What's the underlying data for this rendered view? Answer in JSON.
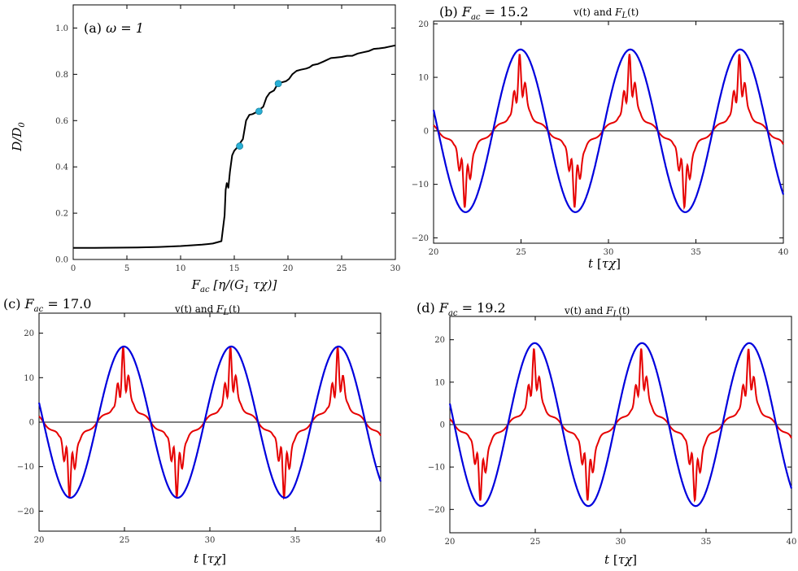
{
  "chart_data": [
    {
      "id": "a",
      "type": "line",
      "title": "(a) ω = 1",
      "panel_label": "(a)",
      "omega_label": "ω = 1",
      "xlabel": "F_ac [η/(G_1 τχ)]",
      "ylabel": "D/D_0",
      "xlim": [
        0,
        30
      ],
      "ylim": [
        0,
        1.1
      ],
      "xticks": [
        0,
        5,
        10,
        15,
        20,
        25,
        30
      ],
      "yticks": [
        0.0,
        0.2,
        0.4,
        0.6,
        0.8,
        1.0
      ],
      "xtick_labels": [
        "0",
        "5",
        "10",
        "15",
        "20",
        "25",
        "30"
      ],
      "ytick_labels": [
        "0.0",
        "0.2",
        "0.4",
        "0.6",
        "0.8",
        "1.0"
      ],
      "series": [
        {
          "name": "D/D_0",
          "color": "#000000",
          "x": [
            0,
            2,
            4,
            6,
            8,
            10,
            12,
            13,
            13.8,
            14.1,
            14.2,
            14.3,
            14.45,
            14.6,
            14.8,
            15.0,
            15.2,
            15.5,
            15.8,
            16.1,
            16.4,
            16.7,
            17.0,
            17.3,
            17.7,
            18.0,
            18.3,
            18.7,
            19.0,
            19.4,
            19.8,
            20.1,
            20.4,
            20.8,
            21.2,
            21.7,
            22.0,
            22.3,
            22.8,
            23.3,
            24.0,
            24.4,
            25.0,
            25.5,
            26.0,
            26.5,
            27.0,
            27.5,
            28.0,
            28.5,
            29.0,
            29.5,
            30.0
          ],
          "y": [
            0.05,
            0.05,
            0.051,
            0.052,
            0.054,
            0.058,
            0.064,
            0.069,
            0.079,
            0.19,
            0.3,
            0.33,
            0.31,
            0.38,
            0.45,
            0.47,
            0.48,
            0.5,
            0.52,
            0.6,
            0.625,
            0.628,
            0.635,
            0.645,
            0.66,
            0.7,
            0.72,
            0.73,
            0.755,
            0.765,
            0.77,
            0.78,
            0.8,
            0.815,
            0.82,
            0.825,
            0.83,
            0.84,
            0.845,
            0.855,
            0.87,
            0.872,
            0.875,
            0.88,
            0.88,
            0.89,
            0.895,
            0.9,
            0.91,
            0.912,
            0.915,
            0.92,
            0.925
          ]
        }
      ],
      "markers": [
        {
          "x": 15.5,
          "y": 0.49
        },
        {
          "x": 17.3,
          "y": 0.64
        },
        {
          "x": 19.1,
          "y": 0.76
        }
      ],
      "marker_color": "#29b0d6"
    },
    {
      "id": "b",
      "type": "line",
      "title": "(b) F_ac = 15.2",
      "panel_label": "(b)",
      "fac_value": "= 15.2",
      "subtitle": "v(t) and F_L(t)",
      "xlabel": "t [τχ]",
      "xlim": [
        20,
        40
      ],
      "ylim": [
        -21,
        20.5
      ],
      "xticks": [
        20,
        25,
        30,
        35,
        40
      ],
      "yticks": [
        -20,
        -10,
        0,
        10,
        20
      ],
      "xtick_labels": [
        "20",
        "25",
        "30",
        "35",
        "40"
      ],
      "ytick_labels": [
        "−20",
        "−10",
        "0",
        "10",
        "20"
      ],
      "series": [
        {
          "name": "v(t)",
          "color": "#e60000",
          "amplitude": 15.2,
          "plateau": 1.6,
          "spike": 4.5
        },
        {
          "name": "F_L(t)",
          "color": "#0000dd",
          "amplitude": 15.2
        }
      ]
    },
    {
      "id": "c",
      "type": "line",
      "title": "(c) F_ac = 17.0",
      "panel_label": "(c)",
      "fac_value": "= 17.0",
      "subtitle": "v(t) and F_L(t)",
      "xlabel": "t [τχ]",
      "xlim": [
        20,
        40
      ],
      "ylim": [
        -24.5,
        24.5
      ],
      "xticks": [
        20,
        25,
        30,
        35,
        40
      ],
      "yticks": [
        -20,
        -10,
        0,
        10,
        20
      ],
      "xtick_labels": [
        "20",
        "25",
        "30",
        "35",
        "40"
      ],
      "ytick_labels": [
        "−20",
        "−10",
        "0",
        "10",
        "20"
      ],
      "series": [
        {
          "name": "v(t)",
          "color": "#e60000",
          "amplitude": 17.0,
          "plateau": 2.0,
          "spike": 5.8
        },
        {
          "name": "F_L(t)",
          "color": "#0000dd",
          "amplitude": 17.0
        }
      ]
    },
    {
      "id": "d",
      "type": "line",
      "title": "(d) F_ac = 19.2",
      "panel_label": "(d)",
      "fac_value": "= 19.2",
      "subtitle": "v(t) and F_L(t)",
      "xlabel": "t [τχ]",
      "xlim": [
        20,
        40
      ],
      "ylim": [
        -25.5,
        25.5
      ],
      "xticks": [
        20,
        25,
        30,
        35,
        40
      ],
      "yticks": [
        -20,
        -10,
        0,
        10,
        20
      ],
      "xtick_labels": [
        "20",
        "25",
        "30",
        "35",
        "40"
      ],
      "ytick_labels": [
        "−20",
        "−10",
        "0",
        "10",
        "20"
      ],
      "series": [
        {
          "name": "v(t)",
          "color": "#e60000",
          "amplitude": 19.2,
          "plateau": 2.0,
          "spike": 5.5
        },
        {
          "name": "F_L(t)",
          "color": "#0000dd",
          "amplitude": 19.2
        }
      ]
    }
  ]
}
